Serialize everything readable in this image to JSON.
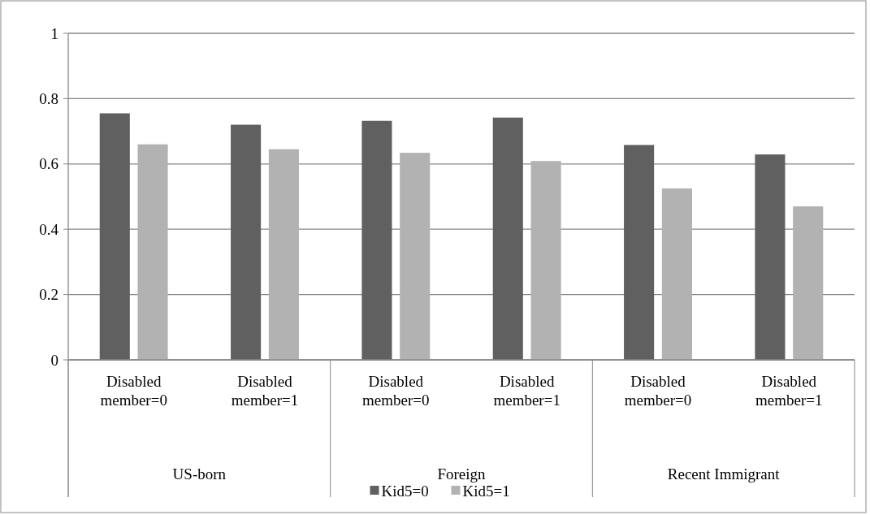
{
  "chart_data": {
    "type": "bar",
    "categories": [
      "Disabled member=0",
      "Disabled member=1",
      "Disabled member=0",
      "Disabled member=1",
      "Disabled member=0",
      "Disabled member=1"
    ],
    "series": [
      {
        "name": "Kid5=0",
        "color": "#606060",
        "values": [
          0.755,
          0.72,
          0.732,
          0.742,
          0.658,
          0.629
        ]
      },
      {
        "name": "Kid5=1",
        "color": "#b2b2b2",
        "values": [
          0.66,
          0.645,
          0.634,
          0.609,
          0.525,
          0.47
        ]
      }
    ],
    "annotations": [
      "US-born",
      "Foreign",
      "Recent Immigrant"
    ],
    "ylim": [
      0,
      1
    ],
    "yticks": [
      0,
      0.2,
      0.4,
      0.6,
      0.8,
      1
    ],
    "grid": "y",
    "legend": "bottom"
  }
}
